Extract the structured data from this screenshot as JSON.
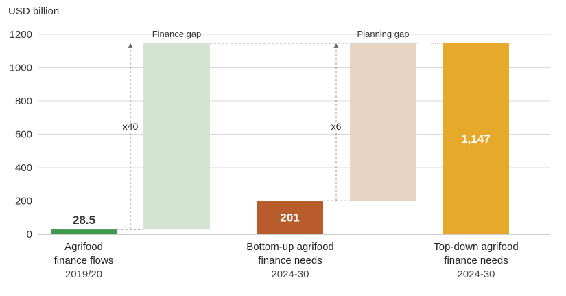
{
  "chart_data": {
    "type": "bar",
    "unit_label": "USD billion",
    "ylim": [
      0,
      1200
    ],
    "yticks": [
      "0",
      "200",
      "400",
      "600",
      "800",
      "1000",
      "1200"
    ],
    "grid": true,
    "categories": [
      {
        "line1": "Agrifood",
        "line2": "finance flows",
        "line3": "2019/20"
      },
      {
        "line1": "Bottom-up agrifood",
        "line2": "finance needs",
        "line3": "2024-30"
      },
      {
        "line1": "Top-down agrifood",
        "line2": "finance needs",
        "line3": "2024-30"
      }
    ],
    "bars": [
      {
        "kind": "value",
        "base": 0,
        "value": 28.5,
        "label": "28.5",
        "color": "#3d9a4c",
        "label_color": "#333333"
      },
      {
        "kind": "gap",
        "base": 28.5,
        "value": 1147,
        "color": "#d3e4d1",
        "gap_label": "Finance gap",
        "multiplier": "x40"
      },
      {
        "kind": "value",
        "base": 0,
        "value": 201,
        "label": "201",
        "color": "#b85c2c",
        "label_color": "#ffffff"
      },
      {
        "kind": "gap",
        "base": 201,
        "value": 1147,
        "color": "#e8d4c3",
        "gap_label": "Planning gap",
        "multiplier": "x6"
      },
      {
        "kind": "value",
        "base": 0,
        "value": 1147,
        "label": "1,147",
        "color": "#e6a92c",
        "label_color": "#ffffff"
      }
    ]
  }
}
